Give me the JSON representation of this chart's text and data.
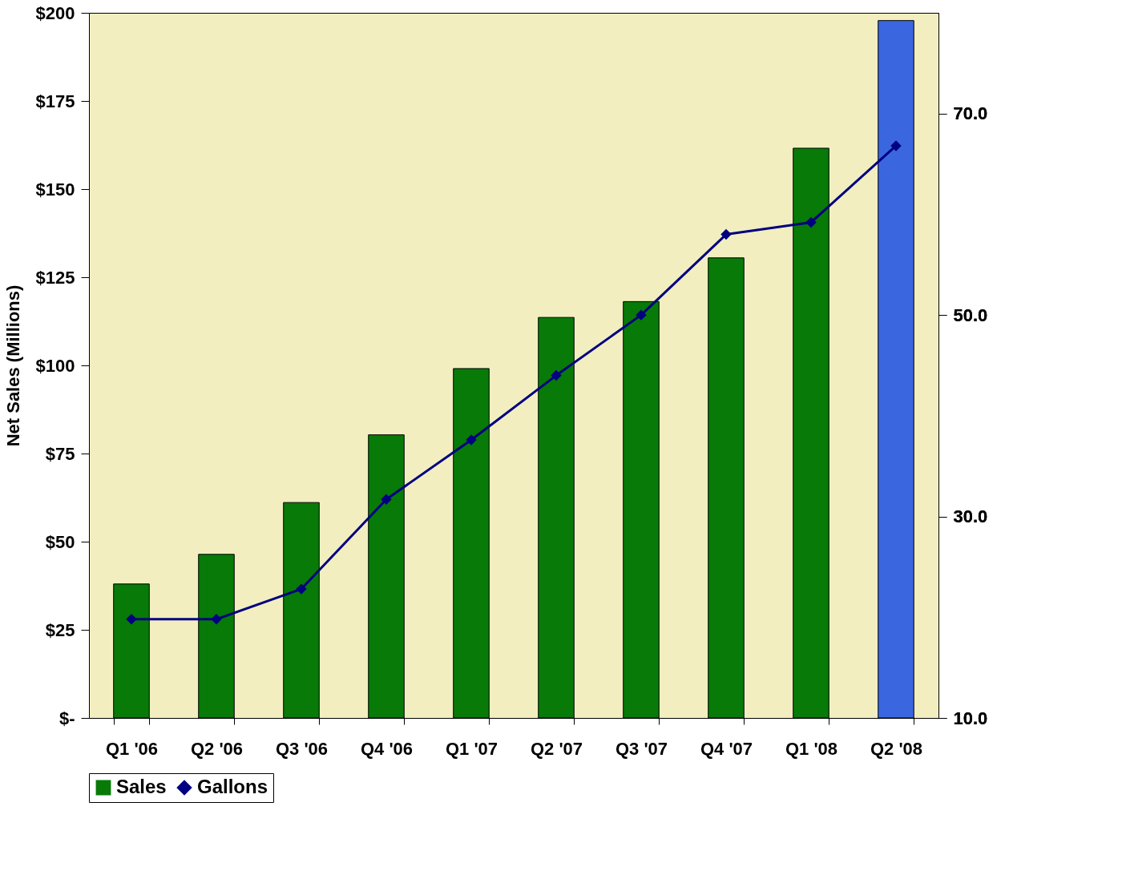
{
  "chart_data": {
    "type": "bar",
    "ylabel": "Net Sales (Millions)",
    "categories": [
      "Q1 '06",
      "Q2 '06",
      "Q3 '06",
      "Q4 '06",
      "Q1 '07",
      "Q2 '07",
      "Q3 '07",
      "Q4 '07",
      "Q1 '08",
      "Q2 '08"
    ],
    "series": [
      {
        "name": "Sales",
        "color": "#087a08",
        "colors": [
          "#087a08",
          "#087a08",
          "#087a08",
          "#087a08",
          "#087a08",
          "#087a08",
          "#087a08",
          "#087a08",
          "#087a08",
          "#3a66e0"
        ],
        "values": [
          38.0,
          46.4,
          61.1,
          80.3,
          99.1,
          113.6,
          118.1,
          130.5,
          161.6,
          197.8
        ]
      },
      {
        "name": "Gallons",
        "type": "line",
        "color": "#000080",
        "axis": "y2",
        "marker": "diamond",
        "values": [
          19.8,
          19.8,
          22.8,
          31.7,
          37.6,
          44.0,
          50.0,
          58.0,
          59.2,
          66.8
        ]
      }
    ],
    "ylim": [
      0,
      200
    ],
    "yticks": [
      {
        "value": 0,
        "label": "$-"
      },
      {
        "value": 25,
        "label": "$25"
      },
      {
        "value": 50,
        "label": "$50"
      },
      {
        "value": 75,
        "label": "$75"
      },
      {
        "value": 100,
        "label": "$100"
      },
      {
        "value": 125,
        "label": "$125"
      },
      {
        "value": 150,
        "label": "$150"
      },
      {
        "value": 175,
        "label": "$175"
      },
      {
        "value": 200,
        "label": "$200"
      }
    ],
    "y2lim": [
      10,
      80
    ],
    "y2ticks": [
      {
        "value": 10,
        "label": "10.0"
      },
      {
        "value": 30,
        "label": "30.0"
      },
      {
        "value": 50,
        "label": "50.0"
      },
      {
        "value": 70,
        "label": "70.0"
      }
    ],
    "legend": "bottom"
  }
}
